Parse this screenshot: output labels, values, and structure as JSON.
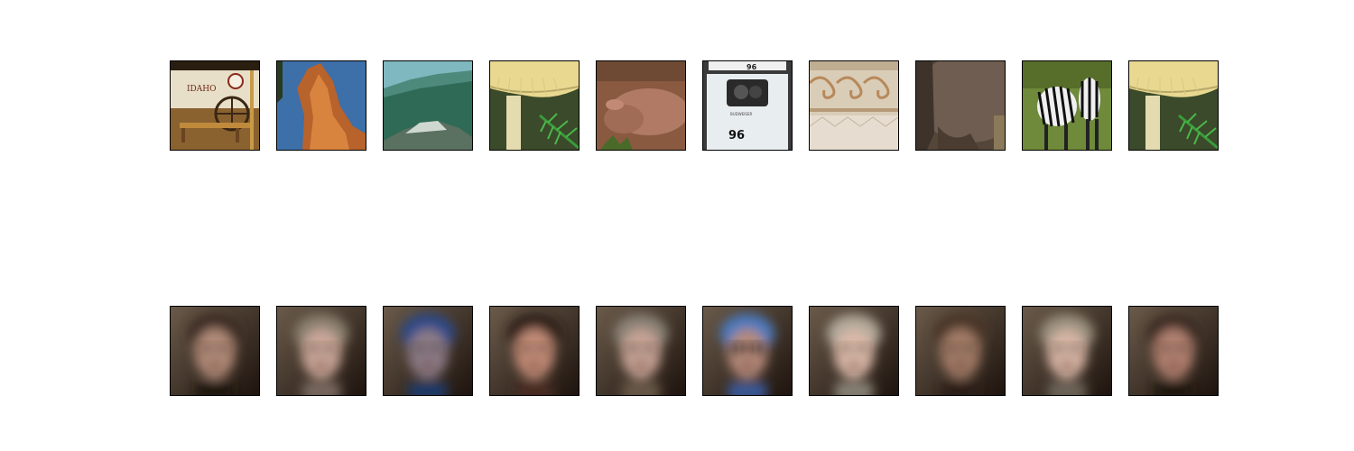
{
  "figure": {
    "rows": [
      {
        "tiles": [
          {
            "subject": "idaho-wagon"
          },
          {
            "subject": "rock-spire"
          },
          {
            "subject": "mountain-hillside"
          },
          {
            "subject": "mushroom-fern"
          },
          {
            "subject": "resting-animal"
          },
          {
            "subject": "race-car-96"
          },
          {
            "subject": "ornamental-carving"
          },
          {
            "subject": "elephant-skin"
          },
          {
            "subject": "zebras"
          },
          {
            "subject": "mushroom-fern"
          }
        ]
      },
      {
        "tiles": [
          {
            "subject": "blurred-face"
          },
          {
            "subject": "blurred-face"
          },
          {
            "subject": "blurred-face"
          },
          {
            "subject": "blurred-face"
          },
          {
            "subject": "blurred-face"
          },
          {
            "subject": "blurred-face-sunglasses"
          },
          {
            "subject": "blurred-face"
          },
          {
            "subject": "blurred-face"
          },
          {
            "subject": "blurred-face"
          },
          {
            "subject": "blurred-face"
          }
        ]
      }
    ],
    "overlay_text": {
      "wagon_sign": "IDAHO",
      "car_number": "96"
    }
  }
}
